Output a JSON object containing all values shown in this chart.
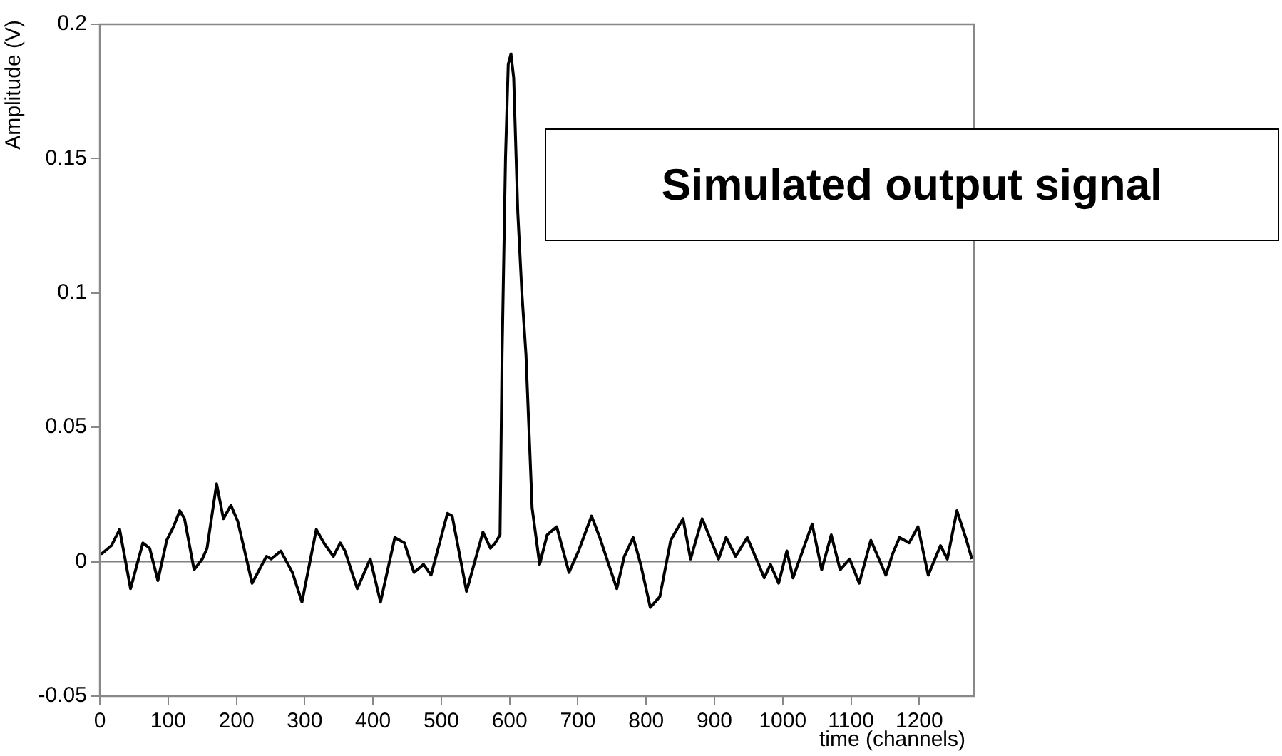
{
  "chart_data": {
    "type": "line",
    "xlabel": "time (channels)",
    "ylabel": "Amplitude (V)",
    "annotations": [
      "Simulated output signal"
    ],
    "xlim": [
      0,
      1280
    ],
    "ylim": [
      -0.05,
      0.2
    ],
    "xticks": [
      0,
      100,
      200,
      300,
      400,
      500,
      600,
      700,
      800,
      900,
      1000,
      1100,
      1200
    ],
    "yticks": [
      -0.05,
      0,
      0.05,
      0.1,
      0.15,
      0.2
    ],
    "grid": false,
    "legend": false,
    "marker": "none",
    "line_style": "solid",
    "ref_lines": [
      {
        "axis": "y",
        "value": 0,
        "label": null,
        "color": "#808080"
      }
    ],
    "series": [
      {
        "color": "#000000",
        "x": [
          0,
          3,
          17,
          29,
          45,
          63,
          73,
          85,
          98,
          108,
          117,
          124,
          138,
          150,
          157,
          171,
          181,
          192,
          202,
          223,
          244,
          251,
          265,
          282,
          296,
          317,
          328,
          342,
          352,
          359,
          377,
          396,
          411,
          432,
          446,
          460,
          474,
          485,
          509,
          516,
          537,
          561,
          572,
          579,
          586,
          589,
          594,
          598,
          602,
          606,
          612,
          618,
          624,
          633,
          644,
          655,
          669,
          687,
          701,
          720,
          732,
          757,
          768,
          781,
          792,
          806,
          820,
          836,
          854,
          865,
          882,
          906,
          917,
          931,
          948,
          973,
          982,
          994,
          1006,
          1015,
          1043,
          1057,
          1071,
          1084,
          1098,
          1112,
          1129,
          1151,
          1161,
          1171,
          1185,
          1198,
          1213,
          1231,
          1241,
          1255,
          1269,
          1277
        ],
        "values": [
          0.003,
          0.003,
          0.006,
          0.012,
          -0.01,
          0.007,
          0.005,
          -0.007,
          0.008,
          0.013,
          0.019,
          0.016,
          -0.003,
          0.001,
          0.005,
          0.029,
          0.016,
          0.021,
          0.015,
          -0.008,
          0.002,
          0.001,
          0.004,
          -0.004,
          -0.015,
          0.012,
          0.007,
          0.002,
          0.007,
          0.004,
          -0.01,
          0.001,
          -0.015,
          0.009,
          0.007,
          -0.004,
          -0.001,
          -0.005,
          0.018,
          0.017,
          -0.011,
          0.011,
          0.005,
          0.007,
          0.01,
          0.077,
          0.15,
          0.185,
          0.189,
          0.18,
          0.13,
          0.1,
          0.077,
          0.02,
          -0.001,
          0.01,
          0.013,
          -0.004,
          0.004,
          0.017,
          0.009,
          -0.01,
          0.002,
          0.009,
          -0.001,
          -0.017,
          -0.013,
          0.008,
          0.016,
          0.001,
          0.016,
          0.001,
          0.009,
          0.002,
          0.009,
          -0.006,
          -0.001,
          -0.008,
          0.004,
          -0.006,
          0.014,
          -0.003,
          0.01,
          -0.003,
          0.001,
          -0.008,
          0.008,
          -0.005,
          0.003,
          0.009,
          0.007,
          0.013,
          -0.005,
          0.006,
          0.001,
          0.019,
          0.008,
          0.001
        ]
      }
    ]
  }
}
